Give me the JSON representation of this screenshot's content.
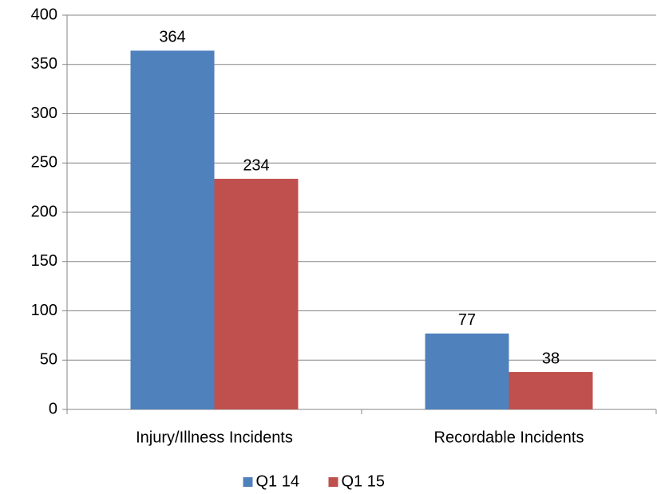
{
  "chart_data": {
    "type": "bar",
    "categories": [
      "Injury/Illness Incidents",
      "Recordable Incidents"
    ],
    "series": [
      {
        "name": "Q1 14",
        "color": "#4f81bd",
        "values": [
          364,
          77
        ]
      },
      {
        "name": "Q1 15",
        "color": "#c0504d",
        "values": [
          234,
          38
        ]
      }
    ],
    "ylim": [
      0,
      400
    ],
    "yticks": [
      0,
      50,
      100,
      150,
      200,
      250,
      300,
      350,
      400
    ],
    "grid": true,
    "legend": "bottom"
  }
}
